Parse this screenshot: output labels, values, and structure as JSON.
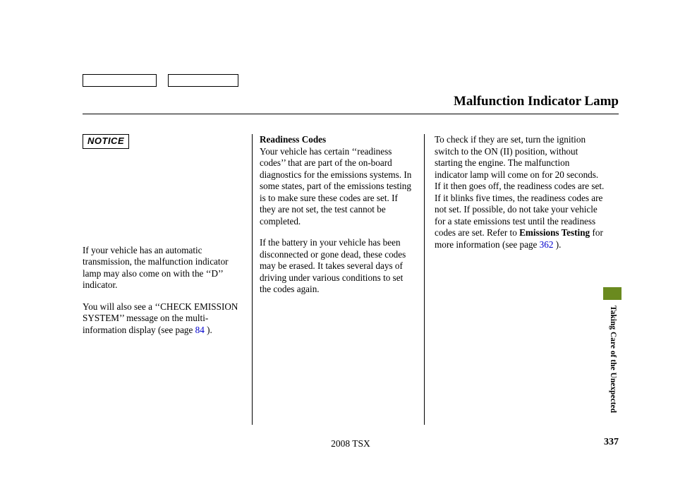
{
  "layout": {
    "box1_width": 105,
    "box2_width": 100,
    "box_gap": 12,
    "green_tab_color": "#6a8a1f"
  },
  "header": {
    "title": "Malfunction Indicator Lamp"
  },
  "col1": {
    "notice_label": "NOTICE",
    "p1_a": "If your vehicle has an automatic transmission, the malfunction indicator lamp may also come on with the ‘‘D’’ indicator.",
    "p2_a": "You will also see a ‘‘CHECK EMISSION SYSTEM’’ message on the multi-information display (see page ",
    "p2_link": "84",
    "p2_b": " )."
  },
  "col2": {
    "heading": "Readiness Codes",
    "p1": "Your vehicle has certain ‘‘readiness codes’’ that are part of the on-board diagnostics for the emissions systems. In some states, part of the emissions testing is to make sure these codes are set. If they are not set, the test cannot be completed.",
    "p2": "If the battery in your vehicle has been disconnected or gone dead, these codes may be erased. It takes several days of driving under various conditions to set the codes again."
  },
  "col3": {
    "p1_a": "To check if they are set, turn the ignition switch to the ON (II) position, without starting the engine. The malfunction indicator lamp will come on for 20 seconds. If it then goes off, the readiness codes are set. If it blinks five times, the readiness codes are not set. If possible, do not take your vehicle for a state emissions test until the readiness codes are set. Refer to ",
    "p1_bold": "Emissions Testing",
    "p1_b": " for more information (see page ",
    "p1_link": "362",
    "p1_c": " )."
  },
  "footer": {
    "model": "2008 TSX",
    "page": "337"
  },
  "sidebar": {
    "label": "Taking Care of the Unexpected"
  }
}
